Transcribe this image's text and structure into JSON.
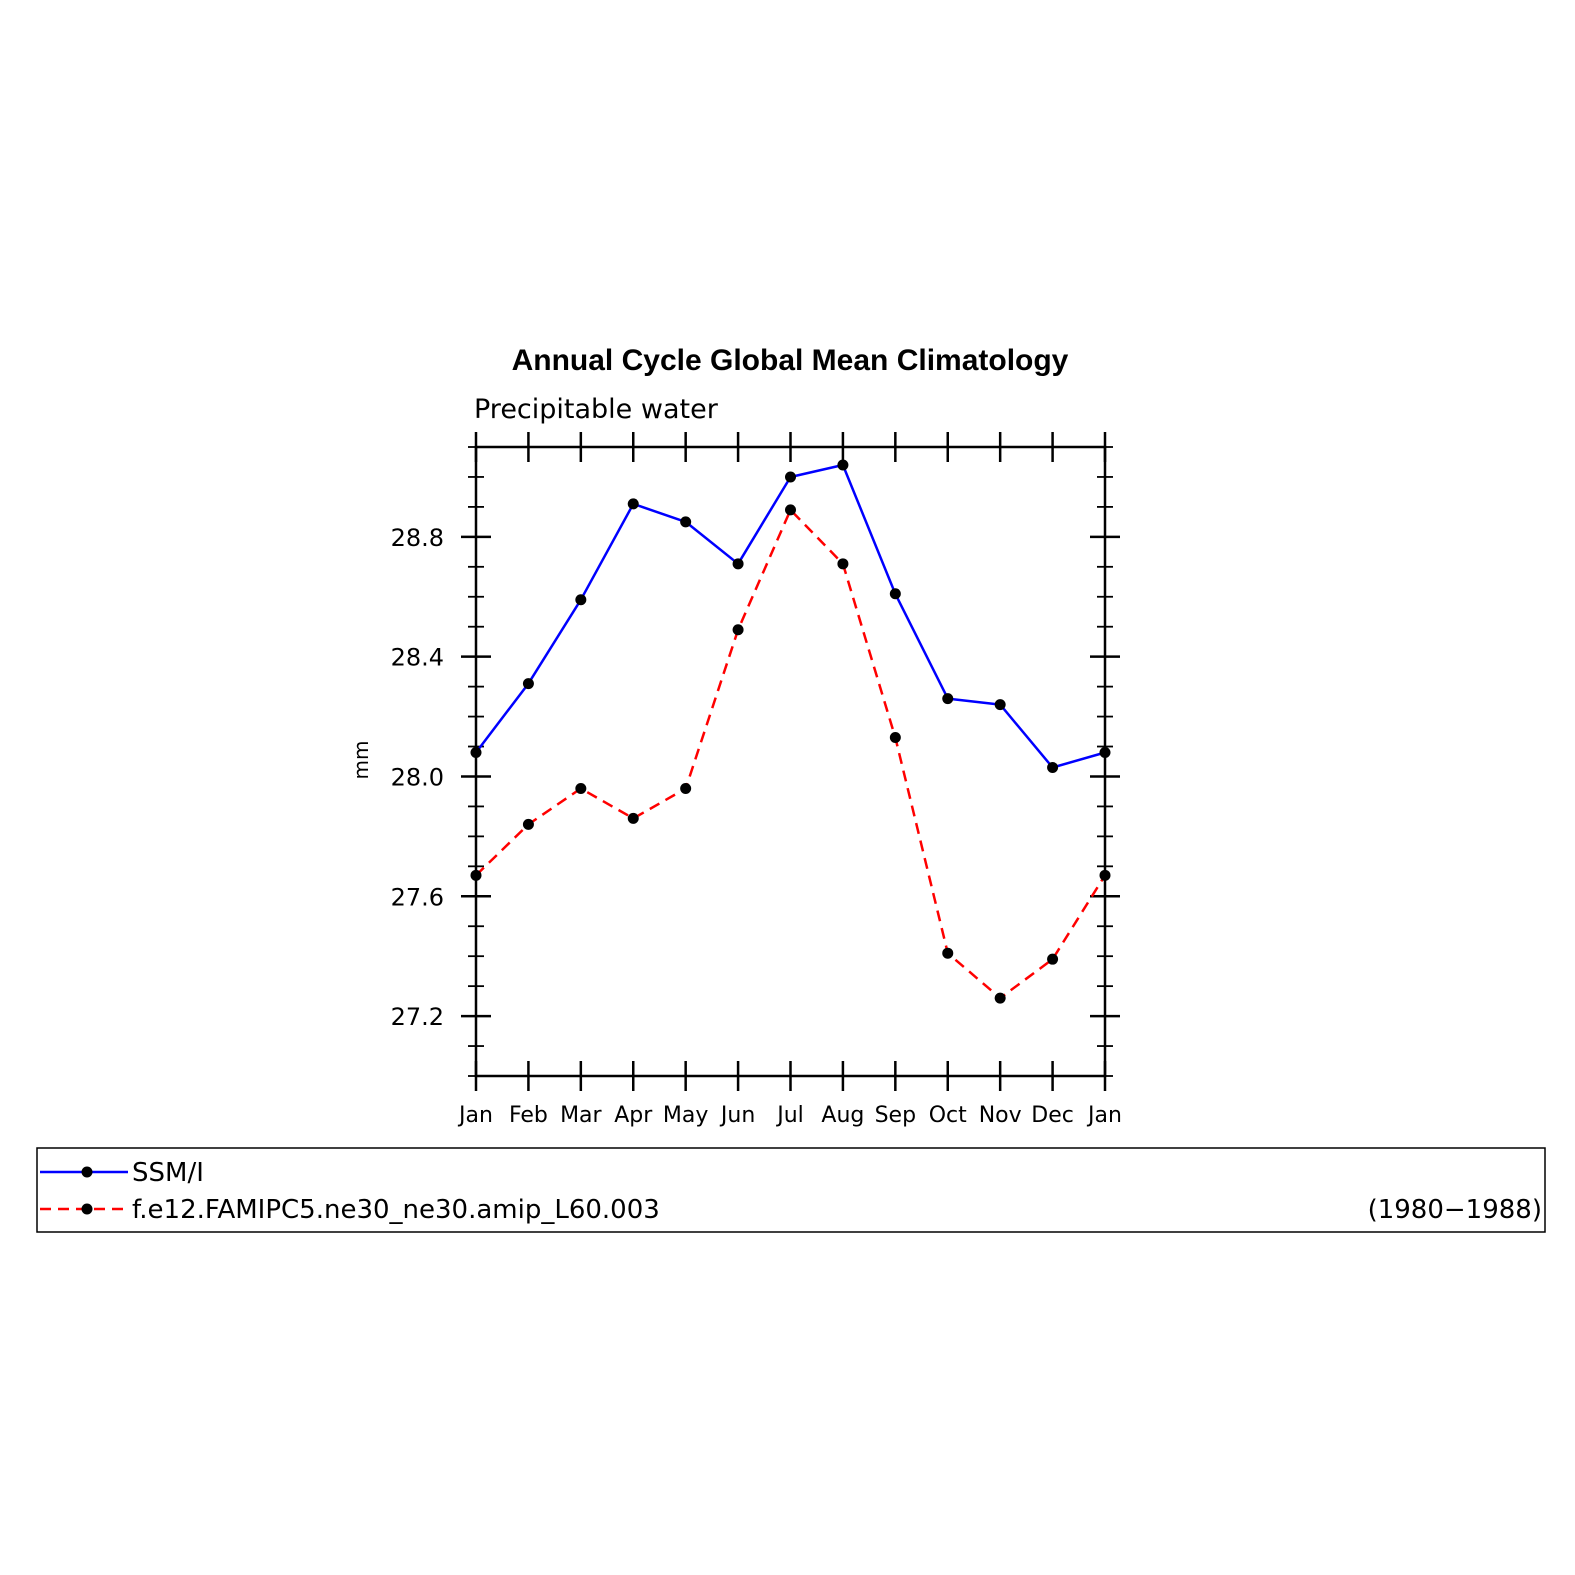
{
  "chart_data": {
    "type": "line",
    "title": "Annual Cycle Global Mean Climatology",
    "subtitle": "Precipitable water",
    "ylabel": "mm",
    "xlabel": "",
    "categories": [
      "Jan",
      "Feb",
      "Mar",
      "Apr",
      "May",
      "Jun",
      "Jul",
      "Aug",
      "Sep",
      "Oct",
      "Nov",
      "Dec",
      "Jan"
    ],
    "ylim": [
      27.0,
      29.1
    ],
    "yticks": [
      27.2,
      27.6,
      28.0,
      28.4,
      28.8
    ],
    "ytick_labels": [
      "27.2",
      "27.6",
      "28.0",
      "28.4",
      "28.8"
    ],
    "grid": false,
    "legend_position": "bottom",
    "series": [
      {
        "name": "SSM/I",
        "color": "#0000ff",
        "style": "solid",
        "values": [
          28.08,
          28.31,
          28.59,
          28.91,
          28.85,
          28.71,
          29.0,
          29.04,
          28.61,
          28.26,
          28.24,
          28.03,
          28.08
        ]
      },
      {
        "name": "f.e12.FAMIPC5.ne30_ne30.amip_L60.003",
        "color": "#ff0000",
        "style": "dashed",
        "values": [
          27.67,
          27.84,
          27.96,
          27.86,
          27.96,
          28.49,
          28.89,
          28.71,
          28.13,
          27.41,
          27.26,
          27.39,
          27.67
        ]
      }
    ],
    "legend_note": "(1980−1988)"
  }
}
